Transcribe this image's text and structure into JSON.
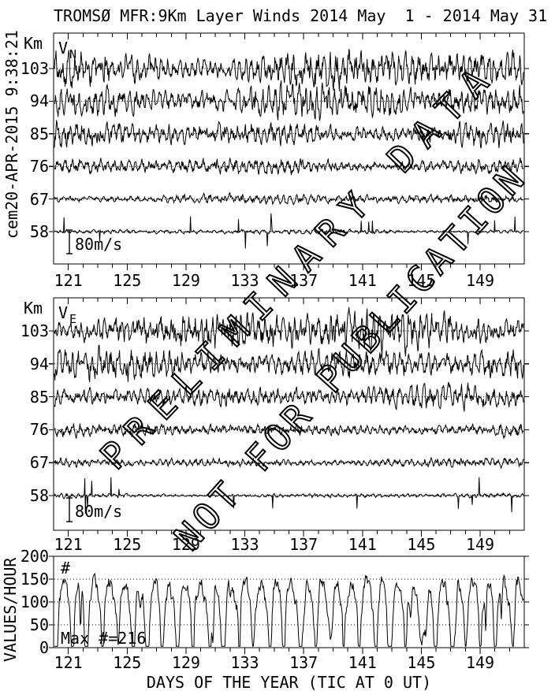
{
  "header": {
    "title": "TROMSØ MFR:9Km Layer Winds 2014 May  1 - 2014 May 31",
    "side_timestamp": "cem20-APR-2015 9:38:21"
  },
  "watermark": {
    "line1": "PRELIMINARY DATA",
    "line2": "NOT FOR PUBLICATION"
  },
  "x_axis": {
    "label": "DAYS OF THE YEAR (TIC AT 0 UT)",
    "day_start": 120,
    "day_end": 152,
    "major_ticks": [
      121,
      125,
      129,
      133,
      137,
      141,
      145,
      149
    ]
  },
  "chart_data": [
    {
      "type": "line",
      "panel": "north-wind",
      "label_main": "V",
      "label_sub": "N",
      "y_unit": "Km",
      "layers_km": [
        103,
        94,
        85,
        76,
        67,
        58
      ],
      "amplitudes_ms": [
        69,
        59,
        45,
        29,
        17,
        8
      ],
      "scale_bar": {
        "label": "80m/s",
        "value_ms": 80
      },
      "x_range_days": [
        121,
        152
      ],
      "baseline_style": "dotted-zero-line-per-layer"
    },
    {
      "type": "line",
      "panel": "east-wind",
      "label_main": "V",
      "label_sub": "E",
      "y_unit": "Km",
      "layers_km": [
        103,
        94,
        85,
        76,
        67,
        58
      ],
      "amplitudes_ms": [
        69,
        56,
        40,
        24,
        16,
        8
      ],
      "scale_bar": {
        "label": "80m/s",
        "value_ms": 80
      },
      "x_range_days": [
        121,
        152
      ],
      "baseline_style": "dotted-zero-line-per-layer"
    },
    {
      "type": "line",
      "panel": "data-counts",
      "ylabel": "VALUES/HOUR",
      "symbol_label": "#",
      "max_label": "Max #=216",
      "max_value": 216,
      "ylim": [
        0,
        200
      ],
      "yticks": [
        0,
        50,
        100,
        150,
        200
      ],
      "gridlines": [
        50,
        100,
        150
      ],
      "typical_range": [
        5,
        160
      ],
      "cadence": "hourly counts with deep diurnal dips"
    }
  ]
}
